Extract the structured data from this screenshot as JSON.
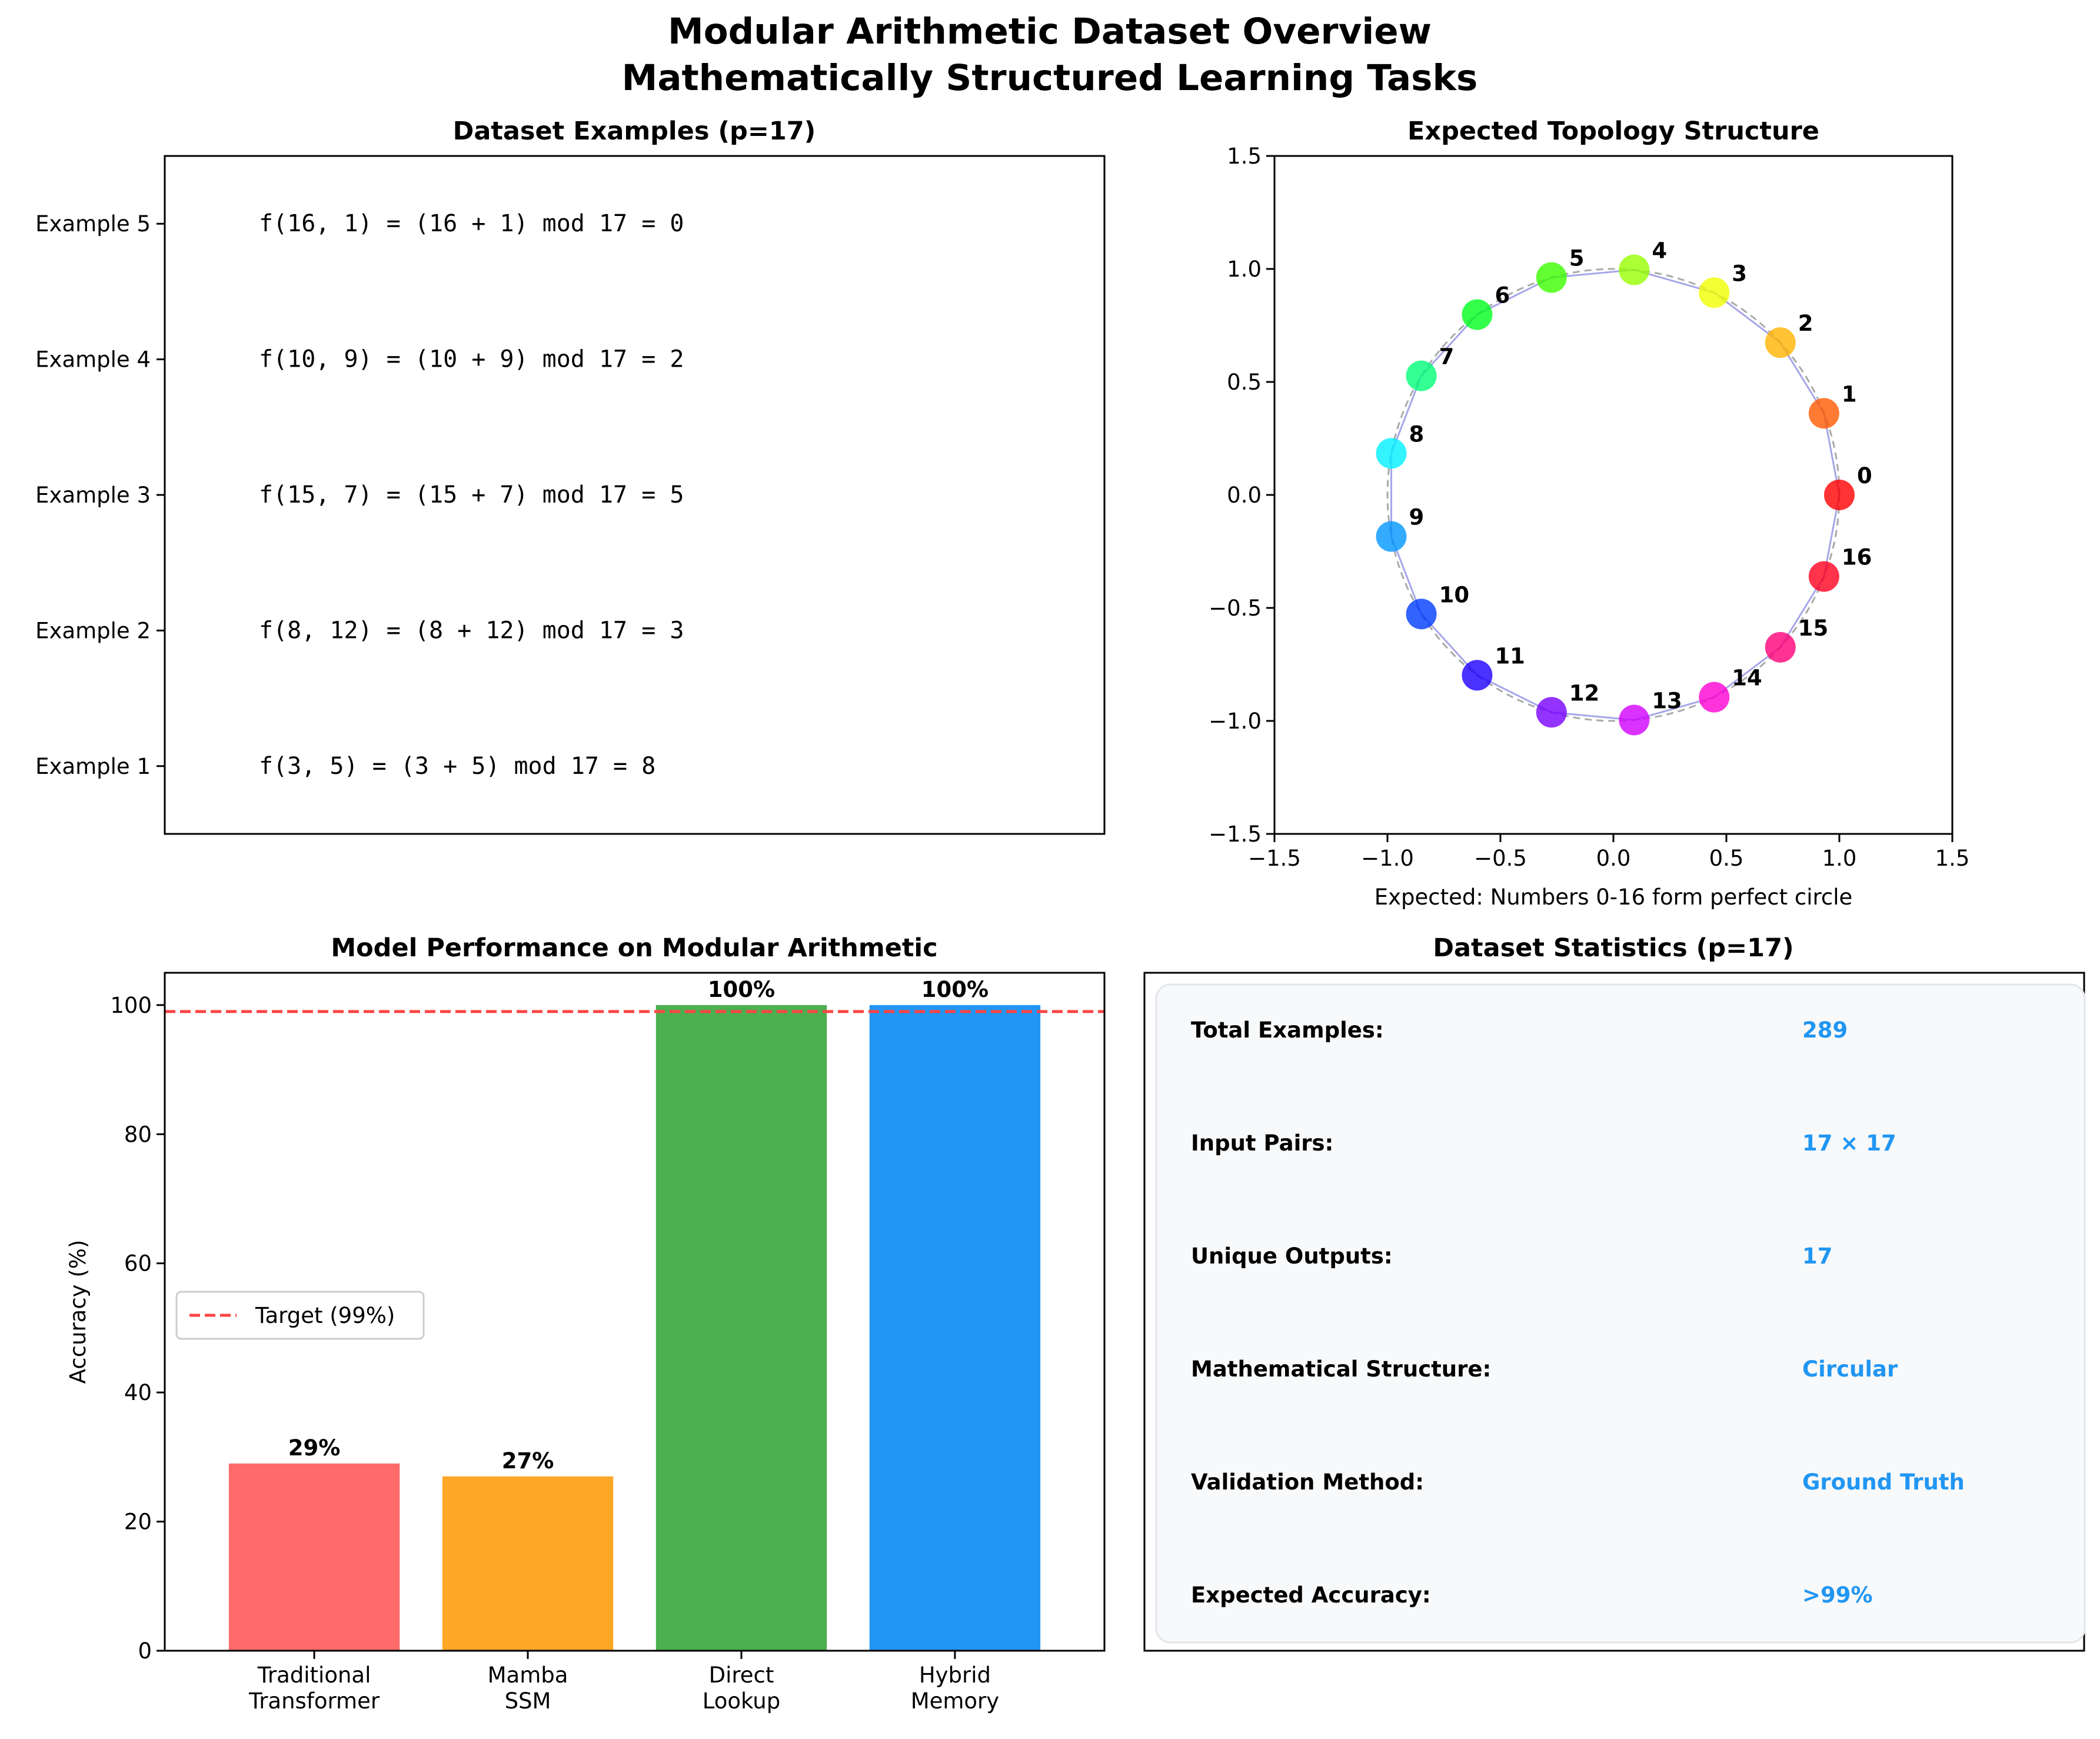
{
  "figure": {
    "title_line1": "Modular Arithmetic Dataset Overview",
    "title_line2": "Mathematically Structured Learning Tasks"
  },
  "chart_data": [
    {
      "type": "table",
      "title": "Dataset Examples (p=17)",
      "rows": [
        {
          "label": "Example 5",
          "text": "f(16, 1) = (16 + 1) mod 17 = 0"
        },
        {
          "label": "Example 4",
          "text": "f(10, 9) = (10 + 9) mod 17 = 2"
        },
        {
          "label": "Example 3",
          "text": "f(15, 7) = (15 + 7) mod 17 = 5"
        },
        {
          "label": "Example 2",
          "text": "f(8, 12) = (8 + 12) mod 17 = 3"
        },
        {
          "label": "Example 1",
          "text": "f(3, 5) = (3 + 5) mod 17 = 8"
        }
      ]
    },
    {
      "type": "scatter",
      "title": "Expected Topology Structure",
      "xlabel": "Expected: Numbers 0-16 form perfect circle",
      "ylabel": "",
      "xlim": [
        -1.5,
        1.5
      ],
      "ylim": [
        -1.5,
        1.5
      ],
      "xticks": [
        -1.5,
        -1.0,
        -0.5,
        0.0,
        0.5,
        1.0,
        1.5
      ],
      "yticks": [
        -1.5,
        -1.0,
        -0.5,
        0.0,
        0.5,
        1.0,
        1.5
      ],
      "xtick_labels": [
        "−1.5",
        "−1.0",
        "−0.5",
        "0.0",
        "0.5",
        "1.0",
        "1.5"
      ],
      "ytick_labels": [
        "−1.5",
        "−1.0",
        "−0.5",
        "0.0",
        "0.5",
        "1.0",
        "1.5"
      ],
      "line_color": "#8080e0",
      "points": [
        {
          "label": "0",
          "x": 1.0,
          "y": 0.0,
          "color": "#ff0000"
        },
        {
          "label": "1",
          "x": 0.932,
          "y": 0.361,
          "color": "#ff5a00"
        },
        {
          "label": "2",
          "x": 0.739,
          "y": 0.674,
          "color": "#ffb400"
        },
        {
          "label": "3",
          "x": 0.446,
          "y": 0.895,
          "color": "#f0ff00"
        },
        {
          "label": "4",
          "x": 0.092,
          "y": 0.996,
          "color": "#96ff00"
        },
        {
          "label": "5",
          "x": -0.274,
          "y": 0.962,
          "color": "#3cff00"
        },
        {
          "label": "6",
          "x": -0.603,
          "y": 0.798,
          "color": "#00ff1e"
        },
        {
          "label": "7",
          "x": -0.85,
          "y": 0.527,
          "color": "#00ff78"
        },
        {
          "label": "8",
          "x": -0.983,
          "y": 0.184,
          "color": "#00f0ff"
        },
        {
          "label": "9",
          "x": -0.983,
          "y": -0.184,
          "color": "#0096ff"
        },
        {
          "label": "10",
          "x": -0.85,
          "y": -0.527,
          "color": "#003cff"
        },
        {
          "label": "11",
          "x": -0.603,
          "y": -0.798,
          "color": "#1e00ff"
        },
        {
          "label": "12",
          "x": -0.274,
          "y": -0.962,
          "color": "#7800ff"
        },
        {
          "label": "13",
          "x": 0.092,
          "y": -0.996,
          "color": "#d200ff"
        },
        {
          "label": "14",
          "x": 0.446,
          "y": -0.895,
          "color": "#ff00d2"
        },
        {
          "label": "15",
          "x": 0.739,
          "y": -0.674,
          "color": "#ff0078"
        },
        {
          "label": "16",
          "x": 0.932,
          "y": -0.361,
          "color": "#ff001e"
        }
      ]
    },
    {
      "type": "bar",
      "title": "Model Performance on Modular Arithmetic",
      "ylabel": "Accuracy (%)",
      "ylim": [
        0,
        105
      ],
      "yticks": [
        0,
        20,
        40,
        60,
        80,
        100
      ],
      "categories": [
        {
          "line1": "Traditional",
          "line2": "Transformer"
        },
        {
          "line1": "Mamba",
          "line2": "SSM"
        },
        {
          "line1": "Direct",
          "line2": "Lookup"
        },
        {
          "line1": "Hybrid",
          "line2": "Memory"
        }
      ],
      "values": [
        29,
        27,
        100,
        100
      ],
      "value_labels": [
        "29%",
        "27%",
        "100%",
        "100%"
      ],
      "colors": [
        "#ff6b6b",
        "#ffa726",
        "#4caf50",
        "#2196f3"
      ],
      "target": {
        "value": 99,
        "label": "Target (99%)",
        "color": "#ff4444"
      },
      "legend_placement": "center-left"
    },
    {
      "type": "table",
      "title": "Dataset Statistics (p=17)",
      "value_color": "#2196f3",
      "rows": [
        {
          "label": "Total Examples:",
          "value": "289"
        },
        {
          "label": "Input Pairs:",
          "value": "17 × 17"
        },
        {
          "label": "Unique Outputs:",
          "value": "17"
        },
        {
          "label": "Mathematical Structure:",
          "value": "Circular"
        },
        {
          "label": "Validation Method:",
          "value": "Ground Truth"
        },
        {
          "label": "Expected Accuracy:",
          "value": ">99%"
        }
      ]
    }
  ]
}
